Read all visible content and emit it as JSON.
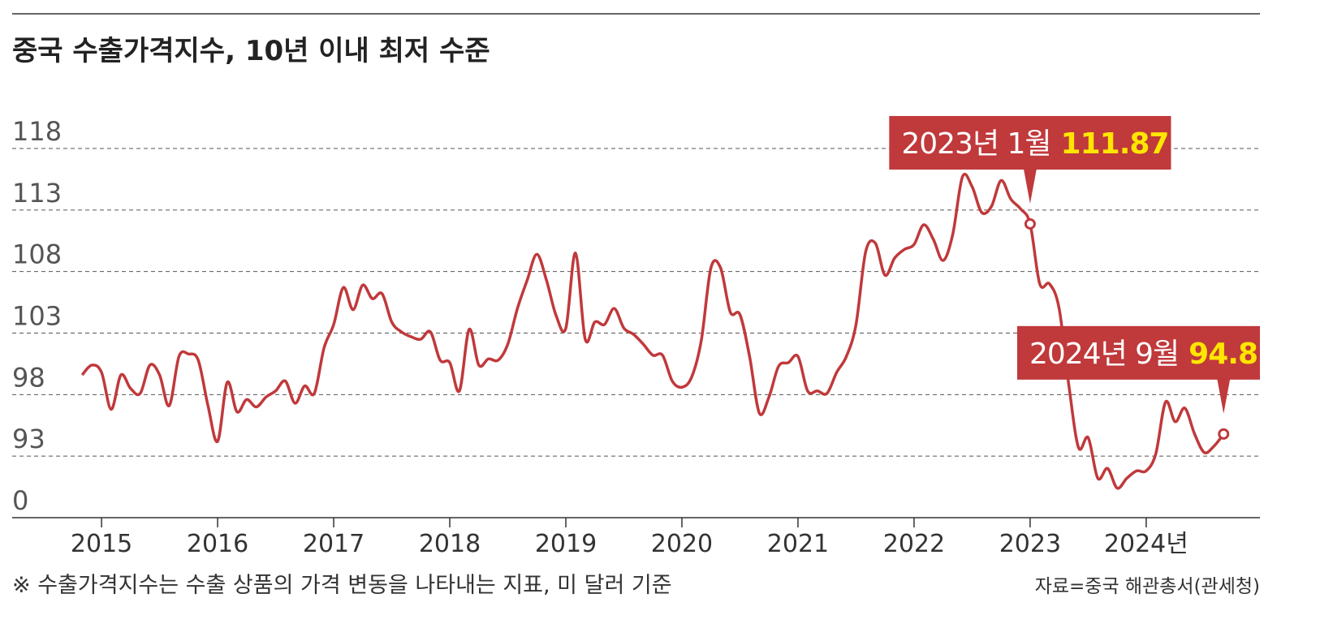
{
  "chart_data": {
    "type": "line",
    "title": "중국 수출가격지수, 10년 이내 최저 수준",
    "note": "※ 수출가격지수는 수출 상품의 가격 변동을 나타내는 지표, 미 달러 기준",
    "source": "자료=중국 해관총서(관세청)",
    "x": [
      2014.833,
      2014.917,
      2015.0,
      2015.083,
      2015.167,
      2015.25,
      2015.333,
      2015.417,
      2015.5,
      2015.583,
      2015.667,
      2015.75,
      2015.833,
      2015.917,
      2016.0,
      2016.083,
      2016.167,
      2016.25,
      2016.333,
      2016.417,
      2016.5,
      2016.583,
      2016.667,
      2016.75,
      2016.833,
      2016.917,
      2017.0,
      2017.083,
      2017.167,
      2017.25,
      2017.333,
      2017.417,
      2017.5,
      2017.583,
      2017.667,
      2017.75,
      2017.833,
      2017.917,
      2018.0,
      2018.083,
      2018.167,
      2018.25,
      2018.333,
      2018.417,
      2018.5,
      2018.583,
      2018.667,
      2018.75,
      2018.833,
      2018.917,
      2019.0,
      2019.083,
      2019.167,
      2019.25,
      2019.333,
      2019.417,
      2019.5,
      2019.583,
      2019.667,
      2019.75,
      2019.833,
      2019.917,
      2020.0,
      2020.083,
      2020.167,
      2020.25,
      2020.333,
      2020.417,
      2020.5,
      2020.583,
      2020.667,
      2020.75,
      2020.833,
      2020.917,
      2021.0,
      2021.083,
      2021.167,
      2021.25,
      2021.333,
      2021.417,
      2021.5,
      2021.583,
      2021.667,
      2021.75,
      2021.833,
      2021.917,
      2022.0,
      2022.083,
      2022.167,
      2022.25,
      2022.333,
      2022.417,
      2022.5,
      2022.583,
      2022.667,
      2022.75,
      2022.833,
      2022.917,
      2023.0,
      2023.083,
      2023.167,
      2023.25,
      2023.333,
      2023.417,
      2023.5,
      2023.583,
      2023.667,
      2023.75,
      2023.833,
      2023.917,
      2024.0,
      2024.083,
      2024.167,
      2024.25,
      2024.333,
      2024.417,
      2024.5,
      2024.583,
      2024.667
    ],
    "series": [
      {
        "name": "수출가격지수",
        "color": "#c0393b",
        "values": [
          99.6,
          100.4,
          99.8,
          96.8,
          99.6,
          98.5,
          98.1,
          100.4,
          99.6,
          97.1,
          101.1,
          101.3,
          100.8,
          97.1,
          94.2,
          99.0,
          96.6,
          97.6,
          97.0,
          97.8,
          98.3,
          99.1,
          97.3,
          98.7,
          98.1,
          101.8,
          103.7,
          106.7,
          104.9,
          106.9,
          105.8,
          106.2,
          103.9,
          103.1,
          102.7,
          102.5,
          103.1,
          100.8,
          100.6,
          98.3,
          103.3,
          100.4,
          100.9,
          100.8,
          102.1,
          105.0,
          107.3,
          109.4,
          107.3,
          104.4,
          103.4,
          109.5,
          102.5,
          103.9,
          103.7,
          105.0,
          103.4,
          102.9,
          102.1,
          101.2,
          101.2,
          99.1,
          98.6,
          99.4,
          102.4,
          108.3,
          108.3,
          104.7,
          104.5,
          101.1,
          96.5,
          97.8,
          100.3,
          100.6,
          101.1,
          98.3,
          98.3,
          98.1,
          99.8,
          101.1,
          103.7,
          109.6,
          110.3,
          107.7,
          109.1,
          109.8,
          110.2,
          111.8,
          110.6,
          108.9,
          111.0,
          115.7,
          114.9,
          112.8,
          113.3,
          115.4,
          113.9,
          113.1,
          111.87,
          107.0,
          107.0,
          105.0,
          98.8,
          93.7,
          94.5,
          91.2,
          92.0,
          90.4,
          91.2,
          91.8,
          91.8,
          93.2,
          97.4,
          95.8,
          96.9,
          94.8,
          93.3,
          93.8,
          94.8
        ]
      }
    ],
    "xlim": [
      2014.23,
      2024.98
    ],
    "xticks": [
      2015,
      2016,
      2017,
      2018,
      2019,
      2020,
      2021,
      2022,
      2023,
      {
        "value": 2024,
        "label": "2024년"
      }
    ],
    "ylim": [
      88,
      118
    ],
    "yticks": [
      0,
      93,
      98,
      103,
      108,
      113,
      118
    ],
    "axis_break": true,
    "grid": true,
    "annotations": [
      {
        "text": "2023년 1월",
        "x": 2023.0,
        "y": 111.87
      },
      {
        "text": "2024년 9월",
        "x": 2024.667,
        "y": 94.8
      }
    ]
  }
}
